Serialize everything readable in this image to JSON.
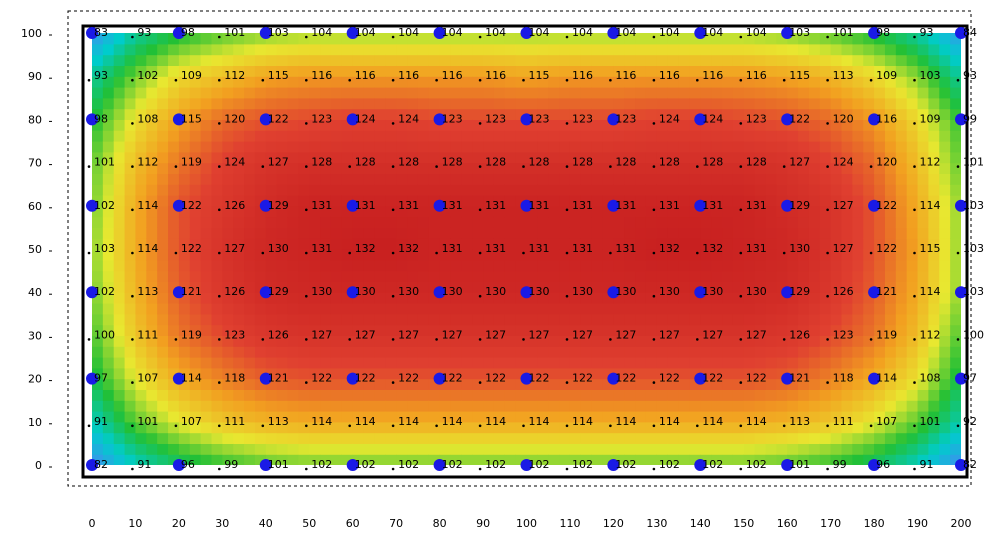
{
  "chart_data": {
    "type": "heatmap",
    "title": "",
    "xlabel": "",
    "ylabel": "",
    "xlim": [
      0,
      200
    ],
    "ylim": [
      0,
      100
    ],
    "x_ticks": [
      "0",
      "10",
      "20",
      "30",
      "40",
      "50",
      "60",
      "70",
      "80",
      "90",
      "100",
      "110",
      "120",
      "130",
      "140",
      "150",
      "160",
      "170",
      "180",
      "190",
      "200"
    ],
    "y_ticks": [
      "0",
      "10",
      "20",
      "30",
      "40",
      "50",
      "60",
      "70",
      "80",
      "90",
      "100"
    ],
    "grid_x": [
      0,
      10,
      20,
      30,
      40,
      50,
      60,
      70,
      80,
      90,
      100,
      110,
      120,
      130,
      140,
      150,
      160,
      170,
      180,
      190,
      200
    ],
    "grid_y": [
      0,
      10,
      20,
      30,
      40,
      50,
      60,
      70,
      80,
      90,
      100
    ],
    "values_rows_from_bottom": [
      [
        "82",
        "91",
        "96",
        "99",
        "101",
        "102",
        "102",
        "102",
        "102",
        "102",
        "102",
        "102",
        "102",
        "102",
        "102",
        "102",
        "101",
        "99",
        "96",
        "91",
        "82"
      ],
      [
        "91",
        "101",
        "107",
        "111",
        "113",
        "114",
        "114",
        "114",
        "114",
        "114",
        "114",
        "114",
        "114",
        "114",
        "114",
        "114",
        "113",
        "111",
        "107",
        "101",
        "92"
      ],
      [
        "97",
        "107",
        "114",
        "118",
        "121",
        "122",
        "122",
        "122",
        "122",
        "122",
        "122",
        "122",
        "122",
        "122",
        "122",
        "122",
        "121",
        "118",
        "114",
        "108",
        "97"
      ],
      [
        "100",
        "111",
        "119",
        "123",
        "126",
        "127",
        "127",
        "127",
        "127",
        "127",
        "127",
        "127",
        "127",
        "127",
        "127",
        "127",
        "126",
        "123",
        "119",
        "112",
        "100"
      ],
      [
        "102",
        "113",
        "121",
        "126",
        "129",
        "130",
        "130",
        "130",
        "130",
        "130",
        "130",
        "130",
        "130",
        "130",
        "130",
        "130",
        "129",
        "126",
        "121",
        "114",
        "103"
      ],
      [
        "103",
        "114",
        "122",
        "127",
        "130",
        "131",
        "132",
        "132",
        "131",
        "131",
        "131",
        "131",
        "131",
        "132",
        "132",
        "131",
        "130",
        "127",
        "122",
        "115",
        "103"
      ],
      [
        "102",
        "114",
        "122",
        "126",
        "129",
        "131",
        "131",
        "131",
        "131",
        "131",
        "131",
        "131",
        "131",
        "131",
        "131",
        "131",
        "129",
        "127",
        "122",
        "114",
        "103"
      ],
      [
        "101",
        "112",
        "119",
        "124",
        "127",
        "128",
        "128",
        "128",
        "128",
        "128",
        "128",
        "128",
        "128",
        "128",
        "128",
        "128",
        "127",
        "124",
        "120",
        "112",
        "101"
      ],
      [
        "98",
        "108",
        "115",
        "120",
        "122",
        "123",
        "124",
        "124",
        "123",
        "123",
        "123",
        "123",
        "123",
        "124",
        "124",
        "123",
        "122",
        "120",
        "116",
        "109",
        "99"
      ],
      [
        "93",
        "102",
        "109",
        "112",
        "115",
        "116",
        "116",
        "116",
        "116",
        "116",
        "115",
        "116",
        "116",
        "116",
        "116",
        "116",
        "115",
        "113",
        "109",
        "103",
        "93"
      ],
      [
        "83",
        "93",
        "98",
        "101",
        "103",
        "104",
        "104",
        "104",
        "104",
        "104",
        "104",
        "104",
        "104",
        "104",
        "104",
        "104",
        "103",
        "101",
        "98",
        "93",
        "84"
      ]
    ],
    "color_scale": [
      "#3f8ff0",
      "#00cccc",
      "#22c035",
      "#e8e830",
      "#f2a020",
      "#e04030",
      "#c82020"
    ],
    "marker_color": "#1a1ae6"
  }
}
